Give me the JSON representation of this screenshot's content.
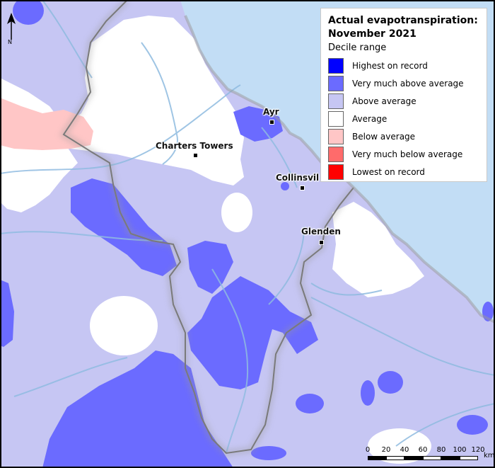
{
  "legend": {
    "title_line1": "Actual evapotranspiration:",
    "title_line2": "November 2021",
    "subtitle": "Decile range",
    "items": [
      {
        "label": "Highest on record",
        "color": "#0000ff"
      },
      {
        "label": "Very much above average",
        "color": "#6b6bff"
      },
      {
        "label": "Above average",
        "color": "#c6c6f3"
      },
      {
        "label": "Average",
        "color": "#ffffff"
      },
      {
        "label": "Below average",
        "color": "#ffc6c6"
      },
      {
        "label": "Very much below average",
        "color": "#ff6b6b"
      },
      {
        "label": "Lowest on record",
        "color": "#ff0000"
      }
    ]
  },
  "places": {
    "ayr": "Ayr",
    "charters_towers": "Charters Towers",
    "collinsville": "Collinsvil",
    "glenden": "Glenden"
  },
  "north_label": "N",
  "scale": {
    "ticks": [
      "0",
      "20",
      "40",
      "60",
      "80",
      "100",
      "120"
    ],
    "unit": "km"
  },
  "colors": {
    "sea": "#c2ddf5",
    "river": "#8fbbe0",
    "boundary": "#7a7a7a"
  }
}
